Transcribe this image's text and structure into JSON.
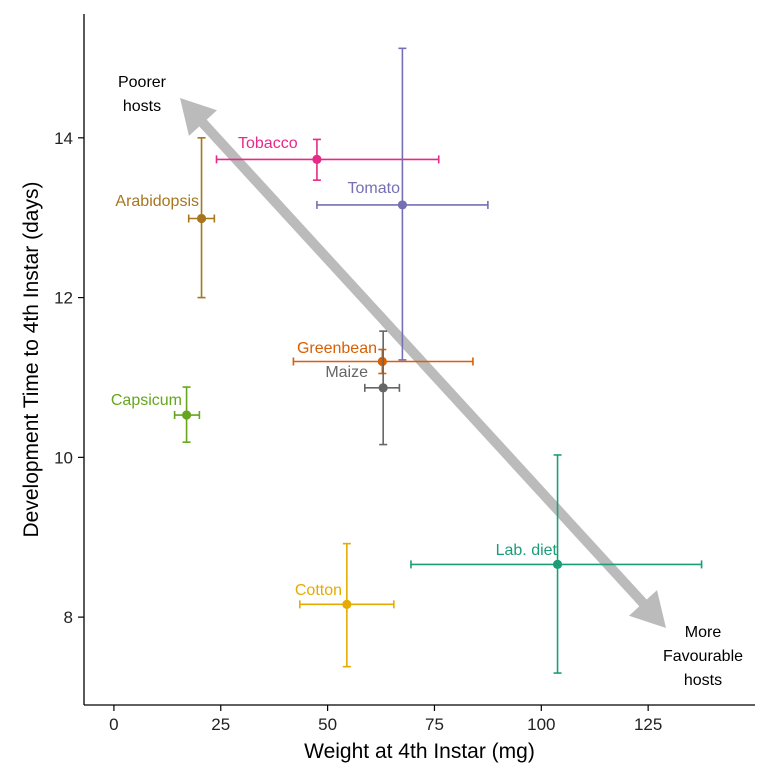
{
  "chart_data": {
    "type": "scatter",
    "title": "",
    "xlabel": "Weight at 4th Instar (mg)",
    "ylabel": "Development Time to 4th Instar (days)",
    "xlim": [
      -7,
      150
    ],
    "ylim": [
      6.9,
      15.55
    ],
    "xticks": [
      0,
      25,
      50,
      75,
      100,
      125
    ],
    "yticks": [
      8,
      10,
      12,
      14
    ],
    "grid": false,
    "series": [
      {
        "name": "Tobacco",
        "color": "#e7298a",
        "x": 47.5,
        "y": 13.73,
        "xerr": [
          24,
          76
        ],
        "yerr": [
          13.47,
          13.98
        ]
      },
      {
        "name": "Tomato",
        "color": "#7570b3",
        "x": 67.5,
        "y": 13.16,
        "xerr": [
          47.5,
          87.5
        ],
        "yerr": [
          11.22,
          15.12
        ]
      },
      {
        "name": "Arabidopsis",
        "color": "#a6761d",
        "x": 20.5,
        "y": 12.99,
        "xerr": [
          17.5,
          23.5
        ],
        "yerr": [
          12.0,
          14.0
        ]
      },
      {
        "name": "Greenbean",
        "color": "#d95f02",
        "x": 62.8,
        "y": 11.2,
        "xerr": [
          42,
          84
        ],
        "yerr": [
          11.05,
          11.35
        ]
      },
      {
        "name": "Maize",
        "color": "#666666",
        "x": 63.0,
        "y": 10.87,
        "xerr": [
          58.7,
          66.8
        ],
        "yerr": [
          10.16,
          11.58
        ]
      },
      {
        "name": "Capsicum",
        "color": "#66a61e",
        "x": 17.0,
        "y": 10.53,
        "xerr": [
          14.2,
          20.0
        ],
        "yerr": [
          10.19,
          10.88
        ]
      },
      {
        "name": "Lab. diet",
        "color": "#1b9e77",
        "x": 103.8,
        "y": 8.66,
        "xerr": [
          69.5,
          137.5
        ],
        "yerr": [
          7.3,
          10.03
        ]
      },
      {
        "name": "Cotton",
        "color": "#e6ab02",
        "x": 54.5,
        "y": 8.16,
        "xerr": [
          43.5,
          65.5
        ],
        "yerr": [
          7.38,
          8.92
        ]
      }
    ],
    "annotations": {
      "top_left": [
        "Poorer",
        "hosts"
      ],
      "bottom_right": [
        "More",
        "Favourable",
        "hosts"
      ],
      "arrow_color": "#bbbbbb"
    }
  }
}
